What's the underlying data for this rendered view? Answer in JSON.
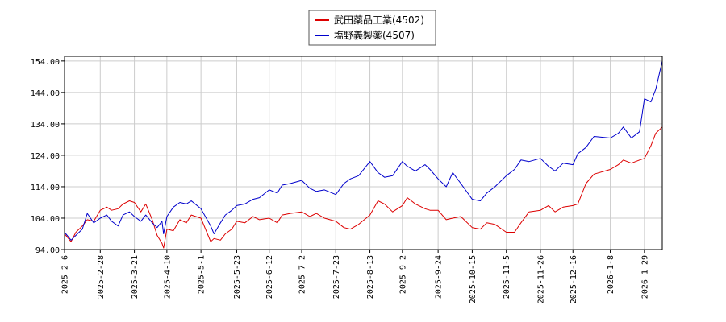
{
  "chart_data": {
    "type": "line",
    "xlabel": "",
    "ylabel": "",
    "ylim": [
      94.0,
      155.5
    ],
    "xlim": [
      "2025-02-06",
      "2026-02-09"
    ],
    "grid": true,
    "legend_position": "top-center",
    "y_ticks": [
      "94.00",
      "104.00",
      "114.00",
      "124.00",
      "134.00",
      "144.00",
      "154.00"
    ],
    "x_ticks": [
      "2025-2-6",
      "2025-2-28",
      "2025-3-21",
      "2025-4-10",
      "2025-5-1",
      "2025-5-23",
      "2025-6-12",
      "2025-7-2",
      "2025-7-23",
      "2025-8-13",
      "2025-9-2",
      "2025-9-24",
      "2025-10-15",
      "2025-11-5",
      "2025-11-26",
      "2025-12-16",
      "2026-1-8",
      "2026-1-29"
    ],
    "series": [
      {
        "name": "武田薬品工業(4502)",
        "color": "#dd0000",
        "x": [
          "2025-02-06",
          "2025-02-10",
          "2025-02-13",
          "2025-02-17",
          "2025-02-20",
          "2025-02-24",
          "2025-02-28",
          "2025-03-04",
          "2025-03-07",
          "2025-03-11",
          "2025-03-14",
          "2025-03-18",
          "2025-03-21",
          "2025-03-25",
          "2025-03-28",
          "2025-04-01",
          "2025-04-04",
          "2025-04-07",
          "2025-04-08",
          "2025-04-10",
          "2025-04-14",
          "2025-04-18",
          "2025-04-22",
          "2025-04-25",
          "2025-05-01",
          "2025-05-07",
          "2025-05-09",
          "2025-05-13",
          "2025-05-16",
          "2025-05-20",
          "2025-05-23",
          "2025-05-28",
          "2025-06-02",
          "2025-06-06",
          "2025-06-12",
          "2025-06-17",
          "2025-06-20",
          "2025-06-25",
          "2025-07-02",
          "2025-07-07",
          "2025-07-11",
          "2025-07-16",
          "2025-07-23",
          "2025-07-28",
          "2025-08-01",
          "2025-08-06",
          "2025-08-13",
          "2025-08-18",
          "2025-08-22",
          "2025-08-27",
          "2025-09-02",
          "2025-09-05",
          "2025-09-10",
          "2025-09-16",
          "2025-09-19",
          "2025-09-24",
          "2025-09-29",
          "2025-10-03",
          "2025-10-08",
          "2025-10-15",
          "2025-10-20",
          "2025-10-24",
          "2025-10-29",
          "2025-11-05",
          "2025-11-10",
          "2025-11-14",
          "2025-11-19",
          "2025-11-26",
          "2025-12-01",
          "2025-12-05",
          "2025-12-10",
          "2025-12-16",
          "2025-12-19",
          "2025-12-24",
          "2025-12-29",
          "2026-01-08",
          "2026-01-13",
          "2026-01-16",
          "2026-01-21",
          "2026-01-26",
          "2026-01-29",
          "2026-02-02",
          "2026-02-05",
          "2026-02-09"
        ],
        "values": [
          99.0,
          96.5,
          99.5,
          101.5,
          103.5,
          103.0,
          106.5,
          107.5,
          106.5,
          107.0,
          108.5,
          109.5,
          109.0,
          106.0,
          108.5,
          103.5,
          98.5,
          96.0,
          94.5,
          100.5,
          100.0,
          103.5,
          102.5,
          105.0,
          104.0,
          96.5,
          97.5,
          97.0,
          99.0,
          100.5,
          103.0,
          102.5,
          104.5,
          103.5,
          104.0,
          102.5,
          105.0,
          105.5,
          106.0,
          104.5,
          105.5,
          104.0,
          103.0,
          101.0,
          100.5,
          102.0,
          105.0,
          109.5,
          108.5,
          106.0,
          108.0,
          110.5,
          108.5,
          107.0,
          106.5,
          106.5,
          103.5,
          104.0,
          104.5,
          101.0,
          100.5,
          102.5,
          102.0,
          99.5,
          99.5,
          102.5,
          106.0,
          106.5,
          108.0,
          106.0,
          107.5,
          108.0,
          108.5,
          115.0,
          118.0,
          119.5,
          121.0,
          122.5,
          121.5,
          122.5,
          123.0,
          127.0,
          131.0,
          133.0
        ]
      },
      {
        "name": "塩野義製薬(4507)",
        "color": "#0000cc",
        "x": [
          "2025-02-06",
          "2025-02-10",
          "2025-02-13",
          "2025-02-17",
          "2025-02-20",
          "2025-02-24",
          "2025-02-28",
          "2025-03-04",
          "2025-03-07",
          "2025-03-11",
          "2025-03-14",
          "2025-03-18",
          "2025-03-21",
          "2025-03-25",
          "2025-03-28",
          "2025-04-01",
          "2025-04-04",
          "2025-04-07",
          "2025-04-08",
          "2025-04-10",
          "2025-04-14",
          "2025-04-18",
          "2025-04-22",
          "2025-04-25",
          "2025-05-01",
          "2025-05-07",
          "2025-05-09",
          "2025-05-13",
          "2025-05-16",
          "2025-05-20",
          "2025-05-23",
          "2025-05-28",
          "2025-06-02",
          "2025-06-06",
          "2025-06-12",
          "2025-06-17",
          "2025-06-20",
          "2025-06-25",
          "2025-07-02",
          "2025-07-07",
          "2025-07-11",
          "2025-07-16",
          "2025-07-23",
          "2025-07-28",
          "2025-08-01",
          "2025-08-06",
          "2025-08-13",
          "2025-08-18",
          "2025-08-22",
          "2025-08-27",
          "2025-09-02",
          "2025-09-05",
          "2025-09-10",
          "2025-09-16",
          "2025-09-19",
          "2025-09-24",
          "2025-09-29",
          "2025-10-03",
          "2025-10-08",
          "2025-10-15",
          "2025-10-20",
          "2025-10-24",
          "2025-10-29",
          "2025-11-05",
          "2025-11-10",
          "2025-11-14",
          "2025-11-19",
          "2025-11-26",
          "2025-12-01",
          "2025-12-05",
          "2025-12-10",
          "2025-12-16",
          "2025-12-19",
          "2025-12-24",
          "2025-12-29",
          "2026-01-08",
          "2026-01-13",
          "2026-01-16",
          "2026-01-21",
          "2026-01-26",
          "2026-01-29",
          "2026-02-02",
          "2026-02-05",
          "2026-02-09"
        ],
        "values": [
          99.5,
          97.0,
          98.5,
          100.5,
          105.5,
          102.5,
          104.0,
          105.0,
          103.0,
          101.5,
          105.0,
          106.0,
          104.5,
          103.0,
          105.0,
          102.5,
          101.0,
          103.0,
          99.0,
          104.5,
          107.5,
          109.0,
          108.5,
          109.5,
          107.0,
          101.5,
          99.0,
          102.5,
          105.0,
          106.5,
          108.0,
          108.5,
          110.0,
          110.5,
          113.0,
          112.0,
          114.5,
          115.0,
          116.0,
          113.5,
          112.5,
          113.0,
          111.5,
          115.0,
          116.5,
          117.5,
          122.0,
          118.5,
          117.0,
          117.5,
          122.0,
          120.5,
          119.0,
          121.0,
          119.5,
          116.5,
          114.0,
          118.5,
          115.0,
          110.0,
          109.5,
          112.0,
          114.0,
          117.5,
          119.5,
          122.5,
          122.0,
          123.0,
          120.5,
          119.0,
          121.5,
          121.0,
          124.5,
          126.5,
          130.0,
          129.5,
          131.0,
          133.0,
          129.5,
          131.5,
          142.0,
          141.0,
          145.0,
          154.0
        ]
      }
    ]
  }
}
